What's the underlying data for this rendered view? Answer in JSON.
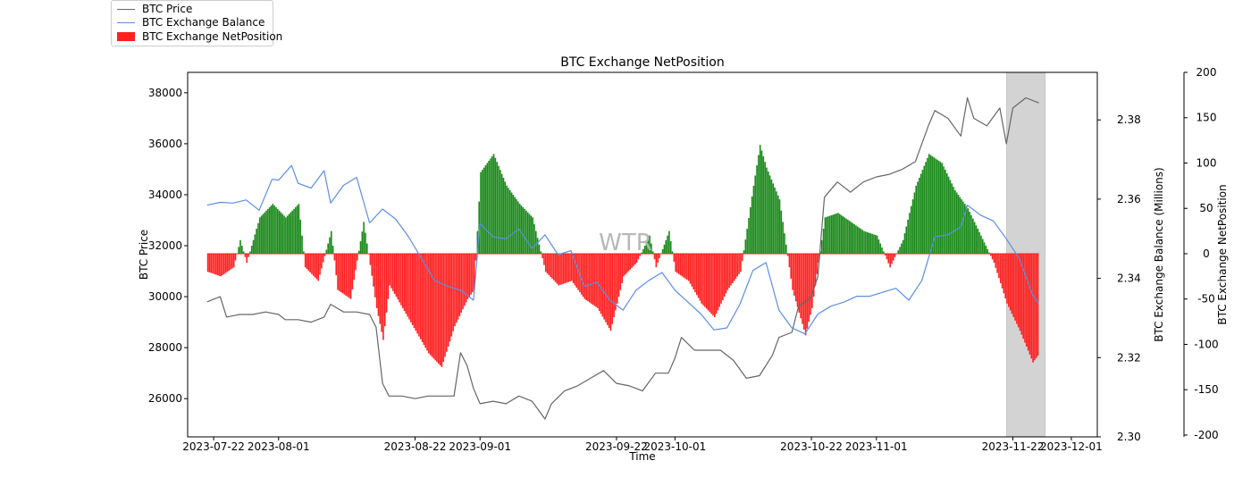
{
  "chart_data": {
    "type": "bar",
    "title": "BTC Exchange NetPosition",
    "xlabel": "Time",
    "ylabel_left": "BTC Price",
    "ylabel_right1": "BTC Exchange Balance (Millions)",
    "ylabel_right2": "BTC Exchange NetPosition",
    "watermark": "WTR",
    "x_range": [
      "2023-07-18",
      "2023-12-05"
    ],
    "x_ticks": [
      "2023-07-22",
      "2023-08-01",
      "2023-08-22",
      "2023-09-01",
      "2023-09-22",
      "2023-10-01",
      "2023-10-22",
      "2023-11-01",
      "2023-11-22",
      "2023-12-01"
    ],
    "price_ylim": [
      24500,
      38800
    ],
    "price_ticks": [
      26000,
      28000,
      30000,
      32000,
      34000,
      36000,
      38000
    ],
    "balance_ylim": [
      2.3,
      2.392
    ],
    "balance_ticks": [
      "2.30",
      "2.32",
      "2.34",
      "2.36",
      "2.38"
    ],
    "netpos_ylim": [
      -202,
      200
    ],
    "netpos_ticks": [
      -200,
      -150,
      -100,
      -50,
      0,
      50,
      100,
      150,
      200
    ],
    "shaded_range": [
      "2023-11-21",
      "2023-11-27"
    ],
    "colors": {
      "price": "#666666",
      "balance": "#5b8ee6",
      "positive": "#1a8a1a",
      "negative": "#ff2020",
      "shade": "#d3d3d3",
      "watermark": "#b8b8b8"
    },
    "series": [
      {
        "name": "BTC Price",
        "type": "line",
        "points": [
          [
            "2023-07-21",
            29800
          ],
          [
            "2023-07-22",
            29900
          ],
          [
            "2023-07-23",
            30000
          ],
          [
            "2023-07-24",
            29200
          ],
          [
            "2023-07-26",
            29300
          ],
          [
            "2023-07-28",
            29300
          ],
          [
            "2023-07-30",
            29400
          ],
          [
            "2023-08-01",
            29300
          ],
          [
            "2023-08-02",
            29100
          ],
          [
            "2023-08-04",
            29100
          ],
          [
            "2023-08-06",
            29000
          ],
          [
            "2023-08-08",
            29200
          ],
          [
            "2023-08-09",
            29700
          ],
          [
            "2023-08-11",
            29400
          ],
          [
            "2023-08-13",
            29400
          ],
          [
            "2023-08-15",
            29300
          ],
          [
            "2023-08-16",
            28800
          ],
          [
            "2023-08-17",
            26600
          ],
          [
            "2023-08-18",
            26100
          ],
          [
            "2023-08-20",
            26100
          ],
          [
            "2023-08-22",
            26000
          ],
          [
            "2023-08-24",
            26100
          ],
          [
            "2023-08-26",
            26100
          ],
          [
            "2023-08-28",
            26100
          ],
          [
            "2023-08-29",
            27800
          ],
          [
            "2023-08-30",
            27300
          ],
          [
            "2023-08-31",
            26400
          ],
          [
            "2023-09-01",
            25800
          ],
          [
            "2023-09-03",
            25900
          ],
          [
            "2023-09-05",
            25800
          ],
          [
            "2023-09-07",
            26100
          ],
          [
            "2023-09-09",
            25900
          ],
          [
            "2023-09-11",
            25200
          ],
          [
            "2023-09-12",
            25800
          ],
          [
            "2023-09-14",
            26300
          ],
          [
            "2023-09-16",
            26500
          ],
          [
            "2023-09-18",
            26800
          ],
          [
            "2023-09-20",
            27100
          ],
          [
            "2023-09-22",
            26600
          ],
          [
            "2023-09-24",
            26500
          ],
          [
            "2023-09-26",
            26300
          ],
          [
            "2023-09-28",
            27000
          ],
          [
            "2023-09-30",
            27000
          ],
          [
            "2023-10-01",
            27600
          ],
          [
            "2023-10-02",
            28400
          ],
          [
            "2023-10-04",
            27900
          ],
          [
            "2023-10-06",
            27900
          ],
          [
            "2023-10-08",
            27900
          ],
          [
            "2023-10-10",
            27500
          ],
          [
            "2023-10-12",
            26800
          ],
          [
            "2023-10-14",
            26900
          ],
          [
            "2023-10-16",
            27700
          ],
          [
            "2023-10-17",
            28400
          ],
          [
            "2023-10-19",
            28600
          ],
          [
            "2023-10-20",
            29600
          ],
          [
            "2023-10-22",
            30000
          ],
          [
            "2023-10-23",
            30800
          ],
          [
            "2023-10-24",
            33900
          ],
          [
            "2023-10-26",
            34500
          ],
          [
            "2023-10-28",
            34100
          ],
          [
            "2023-10-30",
            34500
          ],
          [
            "2023-11-01",
            34700
          ],
          [
            "2023-11-03",
            34800
          ],
          [
            "2023-11-05",
            35000
          ],
          [
            "2023-11-07",
            35300
          ],
          [
            "2023-11-09",
            36700
          ],
          [
            "2023-11-10",
            37300
          ],
          [
            "2023-11-12",
            37000
          ],
          [
            "2023-11-14",
            36300
          ],
          [
            "2023-11-15",
            37800
          ],
          [
            "2023-11-16",
            37000
          ],
          [
            "2023-11-18",
            36700
          ],
          [
            "2023-11-20",
            37400
          ],
          [
            "2023-11-21",
            36000
          ],
          [
            "2023-11-22",
            37400
          ],
          [
            "2023-11-24",
            37800
          ],
          [
            "2023-11-26",
            37600
          ]
        ]
      },
      {
        "name": "BTC Exchange Balance",
        "type": "line",
        "points": [
          [
            "2023-07-21",
            2.3585
          ],
          [
            "2023-07-23",
            2.3592
          ],
          [
            "2023-07-25",
            2.359
          ],
          [
            "2023-07-27",
            2.3598
          ],
          [
            "2023-07-29",
            2.3572
          ],
          [
            "2023-07-31",
            2.365
          ],
          [
            "2023-08-01",
            2.3648
          ],
          [
            "2023-08-03",
            2.3685
          ],
          [
            "2023-08-04",
            2.364
          ],
          [
            "2023-08-06",
            2.3628
          ],
          [
            "2023-08-08",
            2.3672
          ],
          [
            "2023-08-09",
            2.359
          ],
          [
            "2023-08-11",
            2.3635
          ],
          [
            "2023-08-13",
            2.3655
          ],
          [
            "2023-08-15",
            2.354
          ],
          [
            "2023-08-17",
            2.3575
          ],
          [
            "2023-08-19",
            2.355
          ],
          [
            "2023-08-21",
            2.3505
          ],
          [
            "2023-08-23",
            2.345
          ],
          [
            "2023-08-25",
            2.3395
          ],
          [
            "2023-08-27",
            2.338
          ],
          [
            "2023-08-29",
            2.337
          ],
          [
            "2023-08-31",
            2.3345
          ],
          [
            "2023-09-01",
            2.3538
          ],
          [
            "2023-09-03",
            2.3505
          ],
          [
            "2023-09-05",
            2.35
          ],
          [
            "2023-09-07",
            2.3525
          ],
          [
            "2023-09-09",
            2.3475
          ],
          [
            "2023-09-11",
            2.351
          ],
          [
            "2023-09-13",
            2.346
          ],
          [
            "2023-09-15",
            2.347
          ],
          [
            "2023-09-17",
            2.338
          ],
          [
            "2023-09-19",
            2.339
          ],
          [
            "2023-09-21",
            2.3345
          ],
          [
            "2023-09-23",
            2.332
          ],
          [
            "2023-09-25",
            2.337
          ],
          [
            "2023-09-27",
            2.3395
          ],
          [
            "2023-09-29",
            2.3415
          ],
          [
            "2023-10-01",
            2.337
          ],
          [
            "2023-10-03",
            2.334
          ],
          [
            "2023-10-05",
            2.331
          ],
          [
            "2023-10-07",
            2.327
          ],
          [
            "2023-10-09",
            2.3275
          ],
          [
            "2023-10-11",
            2.3335
          ],
          [
            "2023-10-13",
            2.342
          ],
          [
            "2023-10-15",
            2.344
          ],
          [
            "2023-10-17",
            2.332
          ],
          [
            "2023-10-19",
            2.3275
          ],
          [
            "2023-10-21",
            2.326
          ],
          [
            "2023-10-23",
            2.331
          ],
          [
            "2023-10-25",
            2.333
          ],
          [
            "2023-10-27",
            2.334
          ],
          [
            "2023-10-29",
            2.3355
          ],
          [
            "2023-10-31",
            2.3355
          ],
          [
            "2023-11-02",
            2.3365
          ],
          [
            "2023-11-04",
            2.3375
          ],
          [
            "2023-11-06",
            2.3345
          ],
          [
            "2023-11-08",
            2.3395
          ],
          [
            "2023-11-10",
            2.3505
          ],
          [
            "2023-11-12",
            2.351
          ],
          [
            "2023-11-14",
            2.353
          ],
          [
            "2023-11-15",
            2.3585
          ],
          [
            "2023-11-17",
            2.356
          ],
          [
            "2023-11-19",
            2.3545
          ],
          [
            "2023-11-21",
            2.35
          ],
          [
            "2023-11-23",
            2.345
          ],
          [
            "2023-11-25",
            2.336
          ],
          [
            "2023-11-26",
            2.3335
          ]
        ]
      },
      {
        "name": "BTC Exchange NetPosition",
        "type": "bar",
        "points": [
          [
            "2023-07-21",
            -20
          ],
          [
            "2023-07-23",
            -25
          ],
          [
            "2023-07-25",
            -15
          ],
          [
            "2023-07-26",
            15
          ],
          [
            "2023-07-27",
            -10
          ],
          [
            "2023-07-29",
            40
          ],
          [
            "2023-07-31",
            55
          ],
          [
            "2023-08-02",
            40
          ],
          [
            "2023-08-04",
            55
          ],
          [
            "2023-08-05",
            -15
          ],
          [
            "2023-08-07",
            -30
          ],
          [
            "2023-08-09",
            25
          ],
          [
            "2023-08-10",
            -40
          ],
          [
            "2023-08-12",
            -50
          ],
          [
            "2023-08-14",
            35
          ],
          [
            "2023-08-16",
            -60
          ],
          [
            "2023-08-17",
            -95
          ],
          [
            "2023-08-18",
            -35
          ],
          [
            "2023-08-20",
            -60
          ],
          [
            "2023-08-22",
            -85
          ],
          [
            "2023-08-24",
            -110
          ],
          [
            "2023-08-26",
            -125
          ],
          [
            "2023-08-28",
            -80
          ],
          [
            "2023-08-30",
            -50
          ],
          [
            "2023-08-31",
            -40
          ],
          [
            "2023-09-01",
            90
          ],
          [
            "2023-09-03",
            110
          ],
          [
            "2023-09-05",
            75
          ],
          [
            "2023-09-07",
            55
          ],
          [
            "2023-09-09",
            40
          ],
          [
            "2023-09-11",
            -20
          ],
          [
            "2023-09-13",
            -35
          ],
          [
            "2023-09-15",
            -30
          ],
          [
            "2023-09-17",
            -50
          ],
          [
            "2023-09-19",
            -60
          ],
          [
            "2023-09-21",
            -85
          ],
          [
            "2023-09-23",
            -25
          ],
          [
            "2023-09-25",
            -10
          ],
          [
            "2023-09-27",
            20
          ],
          [
            "2023-09-28",
            -15
          ],
          [
            "2023-09-30",
            25
          ],
          [
            "2023-10-01",
            -20
          ],
          [
            "2023-10-03",
            -30
          ],
          [
            "2023-10-05",
            -55
          ],
          [
            "2023-10-07",
            -70
          ],
          [
            "2023-10-09",
            -40
          ],
          [
            "2023-10-11",
            -20
          ],
          [
            "2023-10-13",
            75
          ],
          [
            "2023-10-14",
            120
          ],
          [
            "2023-10-15",
            95
          ],
          [
            "2023-10-17",
            60
          ],
          [
            "2023-10-19",
            -40
          ],
          [
            "2023-10-21",
            -90
          ],
          [
            "2023-10-22",
            -60
          ],
          [
            "2023-10-24",
            40
          ],
          [
            "2023-10-26",
            45
          ],
          [
            "2023-10-28",
            35
          ],
          [
            "2023-10-30",
            25
          ],
          [
            "2023-11-01",
            20
          ],
          [
            "2023-11-03",
            -15
          ],
          [
            "2023-11-05",
            15
          ],
          [
            "2023-11-07",
            75
          ],
          [
            "2023-11-09",
            110
          ],
          [
            "2023-11-11",
            100
          ],
          [
            "2023-11-13",
            70
          ],
          [
            "2023-11-15",
            50
          ],
          [
            "2023-11-17",
            20
          ],
          [
            "2023-11-19",
            -10
          ],
          [
            "2023-11-21",
            -55
          ],
          [
            "2023-11-23",
            -85
          ],
          [
            "2023-11-25",
            -120
          ],
          [
            "2023-11-26",
            -110
          ]
        ]
      }
    ]
  }
}
